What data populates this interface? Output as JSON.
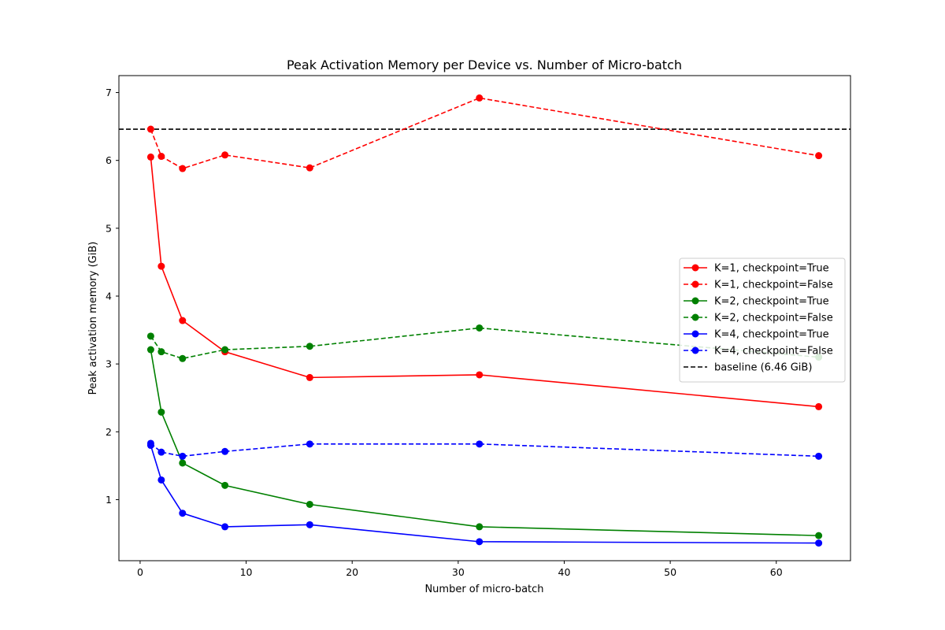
{
  "chart_data": {
    "type": "line",
    "title": "Peak Activation Memory per Device vs. Number of Micro-batch",
    "xlabel": "Number of micro-batch",
    "ylabel": "Peak activation memory (GiB)",
    "xlim": [
      -2,
      67
    ],
    "ylim": [
      0.1,
      7.25
    ],
    "xticks": [
      0,
      10,
      20,
      30,
      40,
      50,
      60
    ],
    "yticks": [
      1,
      2,
      3,
      4,
      5,
      6,
      7
    ],
    "grid": false,
    "legend_position": "center-right",
    "x": [
      1,
      2,
      4,
      8,
      16,
      32,
      64
    ],
    "series": [
      {
        "name": "K=1, checkpoint=True",
        "color": "#ff0000",
        "dashed": false,
        "values": [
          6.05,
          4.44,
          3.64,
          3.18,
          2.8,
          2.84,
          2.37
        ]
      },
      {
        "name": "K=1, checkpoint=False",
        "color": "#ff0000",
        "dashed": true,
        "values": [
          6.46,
          6.06,
          5.88,
          6.08,
          5.89,
          6.92,
          6.07
        ]
      },
      {
        "name": "K=2, checkpoint=True",
        "color": "#008000",
        "dashed": false,
        "values": [
          3.21,
          2.29,
          1.54,
          1.21,
          0.93,
          0.6,
          0.47
        ]
      },
      {
        "name": "K=2, checkpoint=False",
        "color": "#008000",
        "dashed": true,
        "values": [
          3.41,
          3.18,
          3.08,
          3.21,
          3.26,
          3.53,
          3.1
        ]
      },
      {
        "name": "K=4, checkpoint=True",
        "color": "#0000ff",
        "dashed": false,
        "values": [
          1.8,
          1.29,
          0.8,
          0.6,
          0.63,
          0.38,
          0.36
        ]
      },
      {
        "name": "K=4, checkpoint=False",
        "color": "#0000ff",
        "dashed": true,
        "values": [
          1.83,
          1.7,
          1.64,
          1.71,
          1.82,
          1.82,
          1.64
        ]
      }
    ],
    "baseline": {
      "name": "baseline (6.46 GiB)",
      "value": 6.46,
      "color": "#000000",
      "dashed": true
    }
  }
}
